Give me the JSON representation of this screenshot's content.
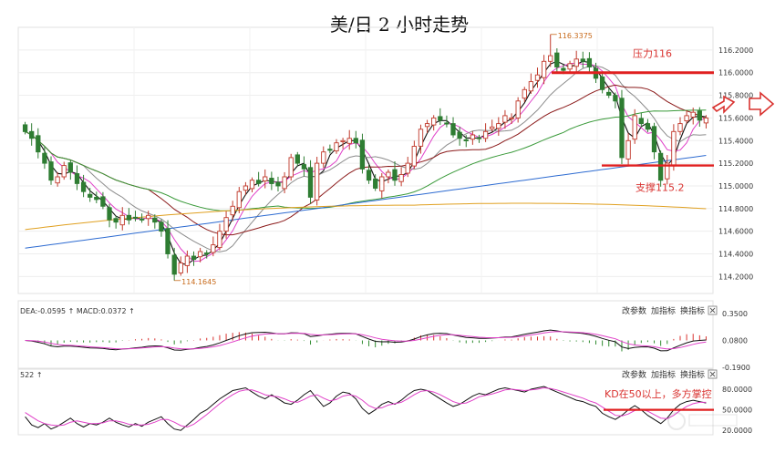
{
  "chart_data": [
    {
      "type": "candlestick",
      "title": "美/日 2 小时走势",
      "y_ticks": [
        "116.2000",
        "116.0000",
        "115.8000",
        "115.6000",
        "115.4000",
        "115.2000",
        "115.0000",
        "114.8000",
        "114.6000",
        "114.4000",
        "114.2000"
      ],
      "ylim": [
        114.05,
        116.4
      ],
      "high_label": "116.3375",
      "low_label": "114.1645",
      "high_value": 116.3375,
      "low_value": 114.1645,
      "resistance": {
        "label": "压力116",
        "value": 116.0
      },
      "support": {
        "label": "支撑115.2",
        "value": 115.18
      },
      "candle_colors": {
        "up": "#c0392b",
        "down": "#2e7d32"
      },
      "moving_average_colors": [
        "#111111",
        "#e040c8",
        "#8c8c8c",
        "#8b1a1a",
        "#3a9a3a",
        "#2d6bd1",
        "#e0a020"
      ],
      "close": [
        115.48,
        115.42,
        115.3,
        115.2,
        115.05,
        115.08,
        115.18,
        115.12,
        115.02,
        114.95,
        114.9,
        114.88,
        114.82,
        114.7,
        114.68,
        114.74,
        114.7,
        114.72,
        114.7,
        114.74,
        114.68,
        114.6,
        114.4,
        114.22,
        114.32,
        114.38,
        114.35,
        114.42,
        114.4,
        114.48,
        114.6,
        114.72,
        114.82,
        114.95,
        115.0,
        115.05,
        115.02,
        115.08,
        115.02,
        115.0,
        115.08,
        115.25,
        115.2,
        115.15,
        114.9,
        115.2,
        115.3,
        115.32,
        115.38,
        115.4,
        115.42,
        115.38,
        115.15,
        115.05,
        114.98,
        115.08,
        115.12,
        115.05,
        115.1,
        115.2,
        115.35,
        115.5,
        115.55,
        115.6,
        115.58,
        115.55,
        115.45,
        115.42,
        115.4,
        115.45,
        115.42,
        115.48,
        115.52,
        115.55,
        115.62,
        115.6,
        115.75,
        115.85,
        115.92,
        115.98,
        116.1,
        116.15,
        116.05,
        116.02,
        116.08,
        116.12,
        116.1,
        116.05,
        115.95,
        115.85,
        115.8,
        115.75,
        115.25,
        115.4,
        115.62,
        115.55,
        115.5,
        115.3,
        115.05,
        115.2,
        115.48,
        115.55,
        115.62,
        115.65,
        115.58,
        115.6
      ]
    },
    {
      "type": "line",
      "indicator": "MACD",
      "header": "DEA:-0.0595 ↑ MACD:0.0372 ↑",
      "y_ticks": [
        "0.3500",
        "0.0800",
        "-0.1900"
      ],
      "ylim": [
        -0.19,
        0.35
      ],
      "controls": [
        "改参数",
        "加指标",
        "换指标"
      ],
      "colors": {
        "dif": "#111111",
        "dea": "#e040c8",
        "bar_up": "#d9322f",
        "bar_down": "#2e8b2e"
      }
    },
    {
      "type": "line",
      "indicator": "KD",
      "header": "522 ↑",
      "annotation": "KD在50以上，多方掌控",
      "y_ticks": [
        "80.0000",
        "50.0000",
        "20.0000"
      ],
      "ylim": [
        15,
        92
      ],
      "reference_level": 50,
      "controls": [
        "改参数",
        "加指标",
        "换指标"
      ],
      "k": [
        40,
        28,
        24,
        30,
        22,
        26,
        32,
        38,
        30,
        25,
        30,
        28,
        32,
        38,
        32,
        28,
        25,
        30,
        26,
        32,
        36,
        40,
        30,
        22,
        20,
        28,
        36,
        45,
        50,
        58,
        66,
        72,
        78,
        80,
        82,
        76,
        70,
        66,
        72,
        66,
        60,
        58,
        64,
        72,
        78,
        66,
        55,
        60,
        70,
        76,
        74,
        66,
        52,
        44,
        50,
        58,
        62,
        58,
        64,
        72,
        78,
        80,
        78,
        72,
        66,
        60,
        55,
        58,
        64,
        70,
        74,
        72,
        76,
        80,
        82,
        80,
        78,
        76,
        80,
        82,
        84,
        80,
        76,
        72,
        68,
        64,
        62,
        58,
        55,
        45,
        40,
        36,
        42,
        50,
        56,
        50,
        42,
        36,
        30,
        38,
        50,
        58,
        62,
        64,
        62,
        60
      ],
      "d": [
        46,
        40,
        34,
        30,
        28,
        27,
        28,
        32,
        34,
        32,
        30,
        30,
        31,
        34,
        34,
        32,
        29,
        28,
        28,
        29,
        32,
        36,
        36,
        32,
        27,
        25,
        29,
        36,
        43,
        51,
        59,
        66,
        72,
        77,
        79,
        79,
        76,
        72,
        70,
        69,
        66,
        62,
        61,
        65,
        70,
        72,
        67,
        63,
        65,
        70,
        72,
        70,
        64,
        56,
        52,
        53,
        57,
        59,
        61,
        66,
        72,
        77,
        78,
        76,
        72,
        67,
        62,
        59,
        60,
        64,
        69,
        71,
        73,
        76,
        79,
        80,
        79,
        78,
        79,
        80,
        82,
        81,
        79,
        76,
        73,
        70,
        67,
        63,
        60,
        54,
        48,
        42,
        41,
        44,
        49,
        51,
        48,
        43,
        38,
        37,
        42,
        49,
        55,
        59,
        61,
        61
      ]
    }
  ]
}
